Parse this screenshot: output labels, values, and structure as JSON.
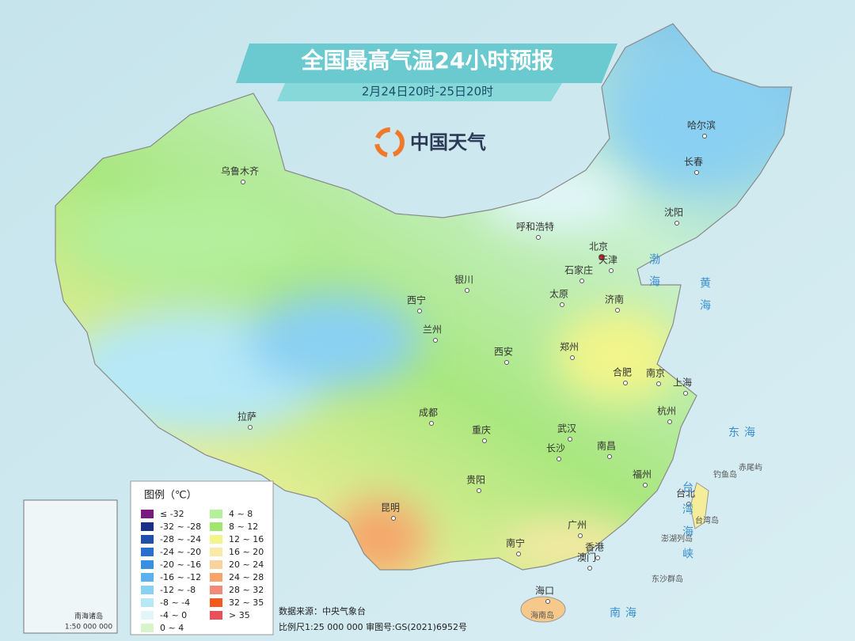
{
  "header": {
    "title": "全国最高气温24小时预报",
    "subtitle": "2月24日20时-25日20时",
    "logo": "中国天气"
  },
  "cities": [
    "乌鲁木齐",
    "哈尔滨",
    "长春",
    "沈阳",
    "呼和浩特",
    "北京",
    "天津",
    "石家庄",
    "银川",
    "太原",
    "济南",
    "西宁",
    "兰州",
    "郑州",
    "西安",
    "合肥",
    "南京",
    "上海",
    "拉萨",
    "成都",
    "武汉",
    "杭州",
    "重庆",
    "长沙",
    "南昌",
    "贵阳",
    "福州",
    "台北",
    "昆明",
    "南宁",
    "广州",
    "香港",
    "澳门",
    "海口"
  ],
  "seas": [
    "渤海",
    "黄海",
    "东海",
    "台湾海峡",
    "南海"
  ],
  "islands": [
    "海南岛",
    "台湾岛",
    "钓鱼岛",
    "赤尾屿",
    "澎湖列岛",
    "东沙群岛"
  ],
  "legend": {
    "title": "图例（℃）",
    "items": [
      {
        "label": "≤ -32",
        "color": "#7b1a7e"
      },
      {
        "label": "-32 ~ -28",
        "color": "#1a2f86"
      },
      {
        "label": "-28 ~ -24",
        "color": "#1f4fa8"
      },
      {
        "label": "-24 ~ -20",
        "color": "#2a6fd0"
      },
      {
        "label": "-20 ~ -16",
        "color": "#3b8fe0"
      },
      {
        "label": "-16 ~ -12",
        "color": "#5cb0ee"
      },
      {
        "label": "-12 ~ -8",
        "color": "#8ad0f2"
      },
      {
        "label": "-8 ~ -4",
        "color": "#b6e8f6"
      },
      {
        "label": "-4 ~ 0",
        "color": "#e2f6fa"
      },
      {
        "label": "0 ~ 4",
        "color": "#d6f5c8"
      },
      {
        "label": "4 ~ 8",
        "color": "#b4ef9c"
      },
      {
        "label": "8 ~ 12",
        "color": "#9fe56e"
      },
      {
        "label": "12 ~ 16",
        "color": "#f2f58a"
      },
      {
        "label": "16 ~ 20",
        "color": "#fbe9a8"
      },
      {
        "label": "20 ~ 24",
        "color": "#fcd29c"
      },
      {
        "label": "24 ~ 28",
        "color": "#f6a46a"
      },
      {
        "label": "28 ~ 32",
        "color": "#f28a7a"
      },
      {
        "label": "32 ~ 35",
        "color": "#f25a1e"
      },
      {
        "label": "> 35",
        "color": "#e8505a"
      }
    ]
  },
  "footer": {
    "source": "数据来源：中央气象台",
    "scale": "比例尺1:25 000 000   审图号:GS(2021)6952号"
  },
  "inset": {
    "title": "南海诸岛",
    "scale": "1:50 000 000"
  }
}
